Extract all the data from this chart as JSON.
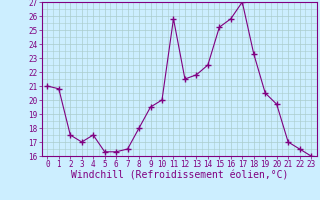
{
  "x": [
    0,
    1,
    2,
    3,
    4,
    5,
    6,
    7,
    8,
    9,
    10,
    11,
    12,
    13,
    14,
    15,
    16,
    17,
    18,
    19,
    20,
    21,
    22,
    23
  ],
  "y": [
    21.0,
    20.8,
    17.5,
    17.0,
    17.5,
    16.3,
    16.3,
    16.5,
    18.0,
    19.5,
    20.0,
    25.8,
    21.5,
    21.8,
    22.5,
    25.2,
    25.8,
    27.0,
    23.3,
    20.5,
    19.7,
    17.0,
    16.5,
    16.0
  ],
  "line_color": "#800080",
  "marker": "+",
  "marker_size": 4,
  "bg_color": "#cceeff",
  "grid_color": "#aacccc",
  "xlabel": "Windchill (Refroidissement éolien,°C)",
  "ylim": [
    16,
    27
  ],
  "xlim": [
    -0.5,
    23.5
  ],
  "yticks": [
    16,
    17,
    18,
    19,
    20,
    21,
    22,
    23,
    24,
    25,
    26,
    27
  ],
  "xticks": [
    0,
    1,
    2,
    3,
    4,
    5,
    6,
    7,
    8,
    9,
    10,
    11,
    12,
    13,
    14,
    15,
    16,
    17,
    18,
    19,
    20,
    21,
    22,
    23
  ],
  "title_color": "#800080",
  "axis_color": "#800080",
  "label_fontsize": 7,
  "tick_fontsize": 5.5
}
